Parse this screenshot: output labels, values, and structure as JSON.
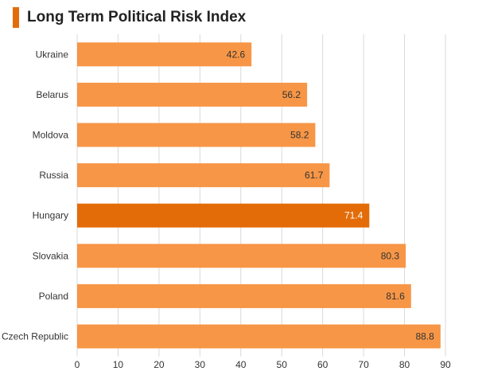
{
  "title": "Long Term Political Risk Index",
  "colors": {
    "accent": "#e36c0a",
    "bar": "#f79646",
    "highlight": "#e36c09",
    "grid": "#d9d9d9",
    "label_dark": "#333333",
    "label_light": "#ffffff"
  },
  "chart_data": {
    "type": "bar",
    "orientation": "horizontal",
    "title": "Long Term Political Risk Index",
    "categories": [
      "Ukraine",
      "Belarus",
      "Moldova",
      "Russia",
      "Hungary",
      "Slovakia",
      "Poland",
      "Czech Republic"
    ],
    "values": [
      42.6,
      56.2,
      58.2,
      61.7,
      71.4,
      80.3,
      81.6,
      88.8
    ],
    "data_labels": [
      "42.6",
      "56.2",
      "58.2",
      "61.7",
      "71.4",
      "80.3",
      "81.6",
      "88.8"
    ],
    "highlighted_category": "Hungary",
    "xlim": [
      0,
      90
    ],
    "xticks": [
      0,
      10,
      20,
      30,
      40,
      50,
      60,
      70,
      80,
      90
    ],
    "xlabel": "",
    "ylabel": "",
    "grid": true,
    "legend": "none"
  }
}
